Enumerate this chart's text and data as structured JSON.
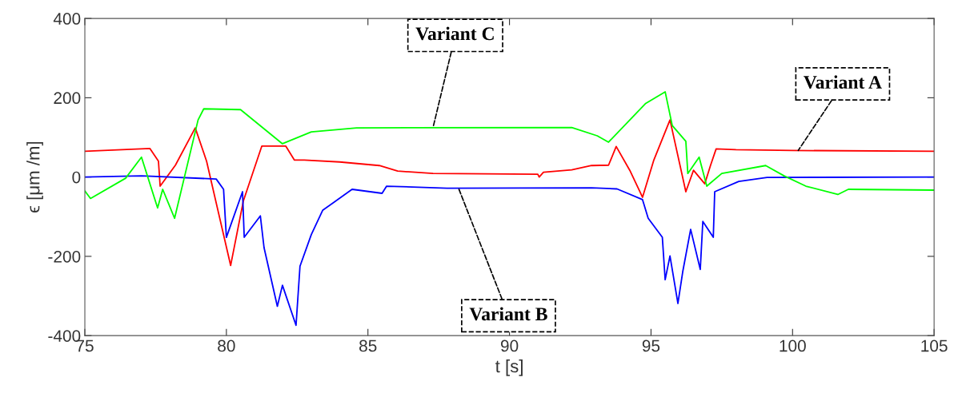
{
  "chart_data": {
    "type": "line",
    "xlabel": "t [s]",
    "ylabel": "ϵ [μm /m]",
    "xlim": [
      75,
      105
    ],
    "xticks": [
      75,
      80,
      85,
      90,
      95,
      100,
      105
    ],
    "ylim": [
      -400,
      400
    ],
    "yticks": [
      -400,
      -200,
      0,
      200,
      400
    ],
    "grid": false,
    "line_style": "solid",
    "marker": "none",
    "series": [
      {
        "color": "#ff0000",
        "x": [
          75,
          77.3,
          77.6,
          77.66,
          78.2,
          78.9,
          79.3,
          80.15,
          80.6,
          81.25,
          82.1,
          82.4,
          82.75,
          84,
          85.4,
          86.05,
          87.3,
          91.0,
          91.05,
          91.2,
          92.2,
          92.9,
          93.5,
          93.77,
          94.25,
          94.7,
          95.1,
          95.67,
          96.23,
          96.5,
          96.9,
          97.1,
          97.3,
          98,
          100,
          105
        ],
        "values": [
          65,
          72,
          40,
          -23,
          30,
          124,
          40,
          -223,
          -60,
          78,
          78,
          43,
          43,
          38,
          29,
          15,
          9,
          7,
          0,
          12,
          18,
          29,
          30,
          77,
          17,
          -51,
          43,
          144,
          -37,
          17,
          -17,
          29,
          71,
          69,
          67,
          65
        ]
      },
      {
        "color": "#0000ff",
        "x": [
          75,
          77,
          79.64,
          79.9,
          80.0,
          80.57,
          80.63,
          81.2,
          81.33,
          81.8,
          81.98,
          82.46,
          82.6,
          83.0,
          83.4,
          84.44,
          85.5,
          85.66,
          87.8,
          92.9,
          93.8,
          94.7,
          94.9,
          95.4,
          95.5,
          95.67,
          95.95,
          96.12,
          96.4,
          96.74,
          96.83,
          97.2,
          97.25,
          98.1,
          99.1,
          105
        ],
        "values": [
          0,
          3,
          -5,
          -31,
          -152,
          -37,
          -152,
          -98,
          -178,
          -326,
          -273,
          -374,
          -225,
          -145,
          -84,
          -31,
          -41,
          -23,
          -28,
          -27,
          -30,
          -57,
          -104,
          -152,
          -259,
          -199,
          -319,
          -239,
          -132,
          -233,
          -112,
          -152,
          -37,
          -11,
          -1,
          0
        ]
      },
      {
        "color": "#00ff00",
        "x": [
          75,
          75.2,
          76.44,
          77.0,
          77.57,
          77.75,
          78.17,
          79.0,
          79.2,
          80.5,
          81.98,
          83.0,
          84.6,
          92.2,
          93.1,
          93.5,
          94.8,
          95.5,
          95.75,
          96.23,
          96.3,
          96.7,
          96.97,
          97.5,
          99.05,
          99.7,
          100.47,
          101.6,
          101.97,
          105
        ],
        "values": [
          -35,
          -54,
          -3,
          50,
          -78,
          -31,
          -104,
          144,
          172,
          170,
          84,
          114,
          124,
          125,
          104,
          88,
          185,
          215,
          130,
          90,
          9,
          50,
          -23,
          9,
          29,
          3,
          -23,
          -44,
          -31,
          -33
        ]
      }
    ],
    "annotations": [
      {
        "text": "Variant A",
        "x": 100.2,
        "y": 67
      },
      {
        "text": "Variant B",
        "x": 88.2,
        "y": -28
      },
      {
        "text": "Variant C",
        "x": 87.3,
        "y": 125
      }
    ]
  }
}
